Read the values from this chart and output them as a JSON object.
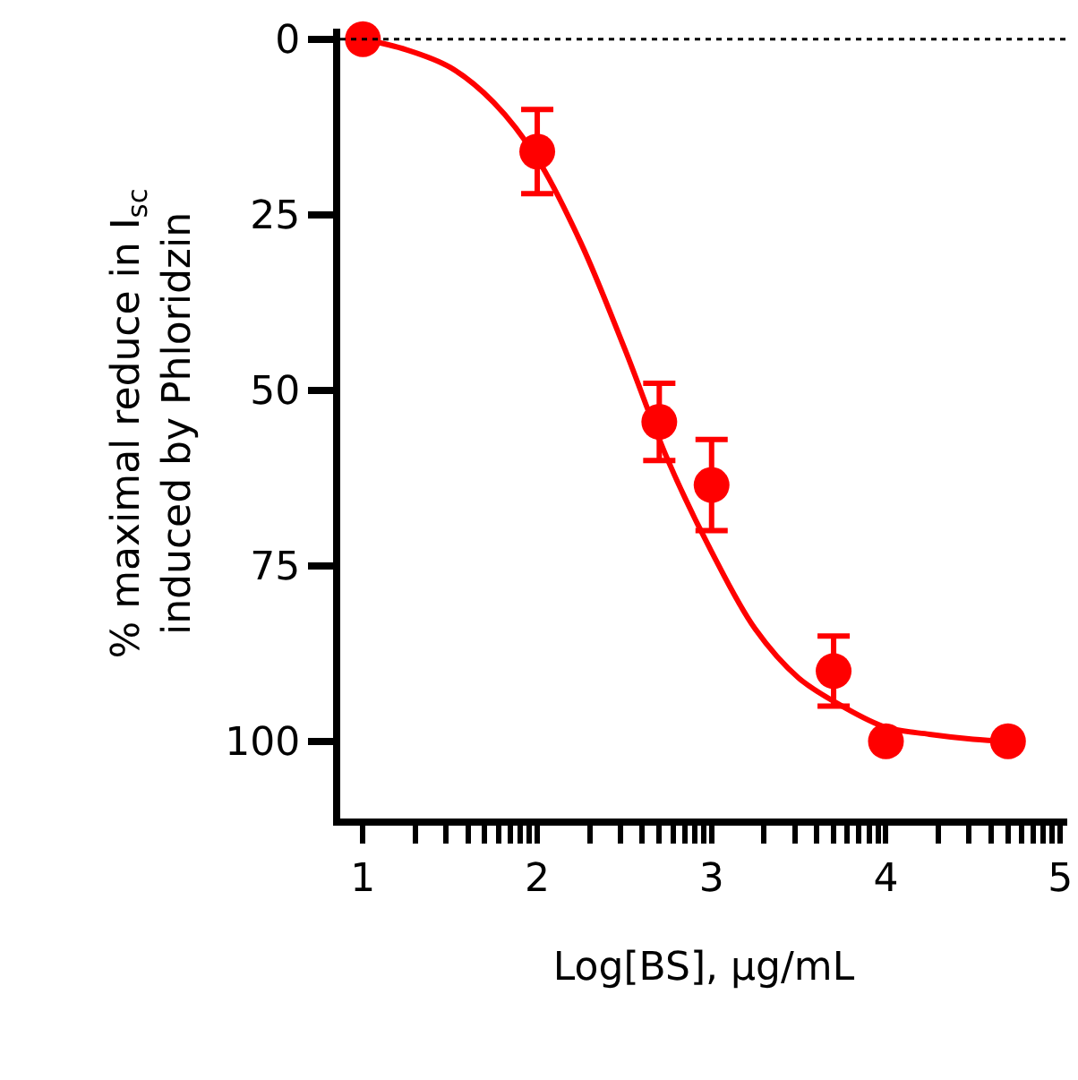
{
  "chart_data": {
    "type": "scatter",
    "xlabel": "Log[BS], µg/mL",
    "ylabel": "% maximal reduce in I$_{sc}$\ninduced by Phloridzin",
    "xlim": [
      0.87,
      5.04
    ],
    "ylim": [
      111,
      -1.5
    ],
    "xticks": [
      1,
      {
        "value": 1.301,
        "label": null
      },
      {
        "value": 1.477,
        "label": null
      },
      {
        "value": 1.602,
        "label": null
      },
      {
        "value": 1.699,
        "label": null
      },
      {
        "value": 1.778,
        "label": null
      },
      {
        "value": 1.845,
        "label": null
      },
      {
        "value": 1.903,
        "label": null
      },
      {
        "value": 1.954,
        "label": null
      },
      2,
      {
        "value": 2.301,
        "label": null
      },
      {
        "value": 2.477,
        "label": null
      },
      {
        "value": 2.602,
        "label": null
      },
      {
        "value": 2.699,
        "label": null
      },
      {
        "value": 2.778,
        "label": null
      },
      {
        "value": 2.845,
        "label": null
      },
      {
        "value": 2.903,
        "label": null
      },
      {
        "value": 2.954,
        "label": null
      },
      3,
      {
        "value": 3.301,
        "label": null
      },
      {
        "value": 3.477,
        "label": null
      },
      {
        "value": 3.602,
        "label": null
      },
      {
        "value": 3.699,
        "label": null
      },
      {
        "value": 3.778,
        "label": null
      },
      {
        "value": 3.845,
        "label": null
      },
      {
        "value": 3.903,
        "label": null
      },
      {
        "value": 3.954,
        "label": null
      },
      4,
      {
        "value": 4.301,
        "label": null
      },
      {
        "value": 4.477,
        "label": null
      },
      {
        "value": 4.602,
        "label": null
      },
      {
        "value": 4.699,
        "label": null
      },
      {
        "value": 4.778,
        "label": null
      },
      {
        "value": 4.845,
        "label": null
      },
      {
        "value": 4.903,
        "label": null
      },
      {
        "value": 4.954,
        "label": null
      },
      5
    ],
    "yticks": [
      0,
      25,
      50,
      75,
      100
    ],
    "grid": false,
    "marker": "circle",
    "series": [
      {
        "color": "#ff0000",
        "x": [
          1,
          2,
          2.7,
          3,
          3.7,
          4,
          4.7
        ],
        "values": [
          0,
          16,
          54.5,
          63.5,
          90,
          100,
          100
        ],
        "errors": [
          null,
          6,
          5.5,
          6.5,
          5,
          null,
          null
        ]
      },
      {
        "type": "line",
        "color": "#ff0000",
        "marker": "none",
        "line_style": "solid",
        "x": [
          1,
          1.25,
          1.5,
          1.75,
          2,
          2.25,
          2.5,
          2.75,
          3,
          3.25,
          3.5,
          3.75,
          4,
          4.25,
          4.5,
          4.7
        ],
        "values": [
          0,
          1.5,
          4,
          9,
          17,
          29,
          44,
          60,
          73,
          84,
          91,
          95,
          98,
          99,
          99.7,
          100
        ]
      }
    ],
    "ref_lines": [
      {
        "axis": "y",
        "value": 0,
        "color": "#000000",
        "line_style": "dotted"
      }
    ]
  }
}
